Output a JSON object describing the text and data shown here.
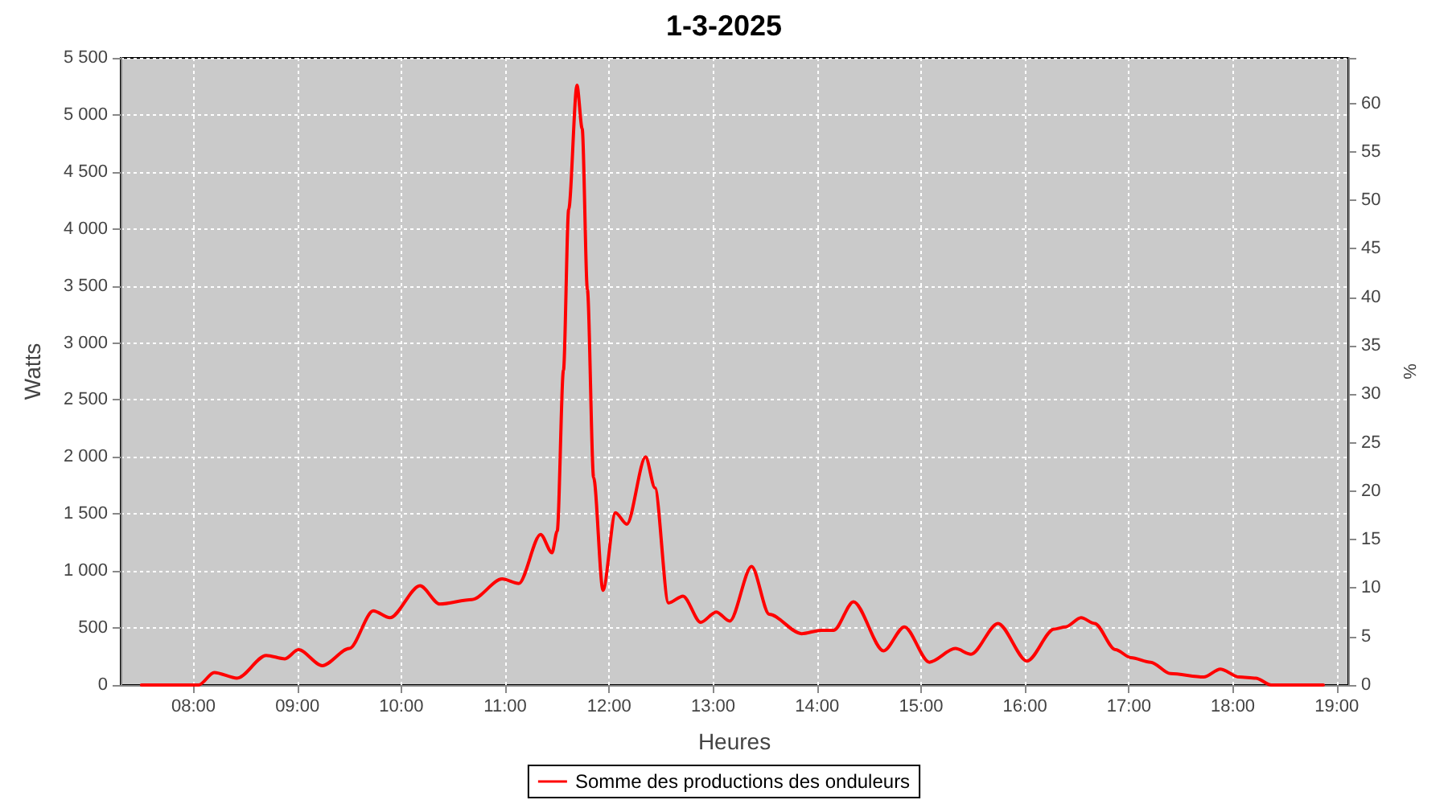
{
  "chart_data": {
    "type": "line",
    "title": "1-3-2025",
    "xlabel": "Heures",
    "ylabel": "Watts",
    "y2label": "%",
    "xlim": [
      7.3,
      19.11
    ],
    "xticks": [
      {
        "value": 8,
        "label": "08:00"
      },
      {
        "value": 9,
        "label": "09:00"
      },
      {
        "value": 10,
        "label": "10:00"
      },
      {
        "value": 11,
        "label": "11:00"
      },
      {
        "value": 12,
        "label": "12:00"
      },
      {
        "value": 13,
        "label": "13:00"
      },
      {
        "value": 14,
        "label": "14:00"
      },
      {
        "value": 15,
        "label": "15:00"
      },
      {
        "value": 16,
        "label": "16:00"
      },
      {
        "value": 17,
        "label": "17:00"
      },
      {
        "value": 18,
        "label": "18:00"
      },
      {
        "value": 19,
        "label": "19:00"
      }
    ],
    "ylim": [
      0,
      5500
    ],
    "yticks": [
      0,
      500,
      {
        "value": 1000,
        "label": "1 000"
      },
      {
        "value": 1500,
        "label": "1 500"
      },
      {
        "value": 2000,
        "label": "2 000"
      },
      {
        "value": 2500,
        "label": "2 500"
      },
      {
        "value": 3000,
        "label": "3 000"
      },
      {
        "value": 3500,
        "label": "3 500"
      },
      {
        "value": 4000,
        "label": "4 000"
      },
      {
        "value": 4500,
        "label": "4 500"
      },
      {
        "value": 5000,
        "label": "5 000"
      },
      {
        "value": 5500,
        "label": "5 500"
      }
    ],
    "y2lim": [
      0,
      64.7
    ],
    "y2ticks": [
      0,
      5,
      10,
      15,
      20,
      25,
      30,
      35,
      40,
      45,
      50,
      55,
      60
    ],
    "grid": true,
    "legend": "bottom",
    "marker": "none",
    "line_style": "solid",
    "series": [
      {
        "name": "Somme des productions des onduleurs",
        "color": "#ff0000",
        "x": [
          7.5,
          8.05,
          8.2,
          8.42,
          8.7,
          8.88,
          9.01,
          9.24,
          9.5,
          9.73,
          9.89,
          10.18,
          10.37,
          10.68,
          10.97,
          11.13,
          11.34,
          11.45,
          11.5,
          11.56,
          11.61,
          11.69,
          11.74,
          11.79,
          11.85,
          11.94,
          12.06,
          12.17,
          12.35,
          12.44,
          12.57,
          12.71,
          12.88,
          13.03,
          13.16,
          13.37,
          13.54,
          13.85,
          14.04,
          14.16,
          14.35,
          14.64,
          14.84,
          15.08,
          15.33,
          15.48,
          15.74,
          16.02,
          16.28,
          16.39,
          16.54,
          16.67,
          16.87,
          17.02,
          17.21,
          17.4,
          17.72,
          17.88,
          18.06,
          18.22,
          18.37,
          18.87
        ],
        "values": [
          0,
          0,
          110,
          60,
          260,
          230,
          310,
          170,
          320,
          650,
          590,
          870,
          710,
          750,
          930,
          890,
          1320,
          1160,
          1350,
          2760,
          4170,
          5260,
          4880,
          3470,
          1820,
          830,
          1510,
          1410,
          2000,
          1730,
          720,
          780,
          550,
          640,
          560,
          1040,
          620,
          450,
          480,
          480,
          730,
          300,
          510,
          200,
          320,
          270,
          540,
          210,
          490,
          510,
          590,
          540,
          310,
          240,
          200,
          100,
          70,
          140,
          70,
          60,
          0,
          0
        ]
      }
    ]
  }
}
